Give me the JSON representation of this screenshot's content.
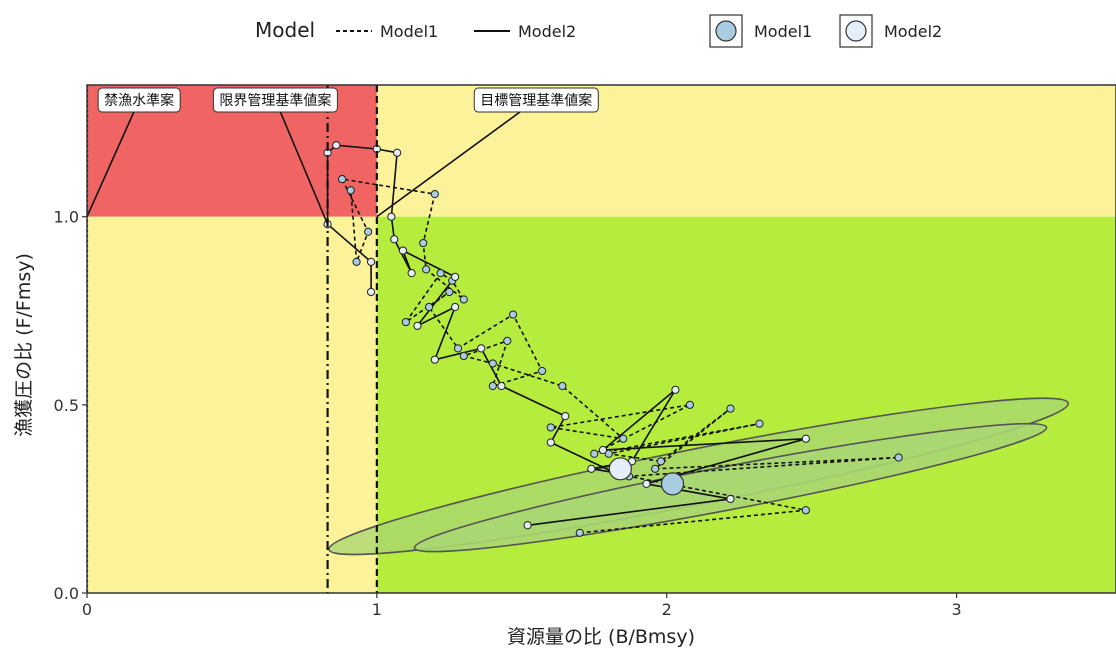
{
  "chart_data": {
    "type": "line",
    "xlabel": "資源量の比 (B/Bmsy)",
    "ylabel": "漁獲圧の比 (F/Fmsy)",
    "xlim": [
      0,
      3.55
    ],
    "ylim": [
      0,
      1.35
    ],
    "x_ticks": [
      0,
      1,
      2,
      3
    ],
    "y_ticks": [
      0.0,
      0.5,
      1.0
    ],
    "x_tick_labels": [
      "0",
      "1",
      "2",
      "3"
    ],
    "y_tick_labels": [
      "0.0",
      "0.5",
      "1.0"
    ],
    "grid": false,
    "legend_placement": "top",
    "colors": {
      "red_zone": "#f06464",
      "yellow_zone": "#fbf299",
      "green_zone": "#b5ec3d",
      "model1_point": "#a8cde0",
      "model2_point": "#e3eef8",
      "ellipse_fill": "#a8d672",
      "ellipse_stroke": "#555555"
    },
    "legend": {
      "line_title": "Model",
      "line_entries": [
        {
          "name": "Model1",
          "linestyle": "dashed"
        },
        {
          "name": "Model2",
          "linestyle": "solid"
        }
      ],
      "point_entries": [
        {
          "name": "Model1",
          "color": "#a8cde0"
        },
        {
          "name": "Model2",
          "color": "#e3eef8"
        }
      ]
    },
    "reference_lines": [
      {
        "label": "禁漁水準案",
        "x": 0,
        "linestyle": "dotted",
        "label_anchor": [
          0.18,
          1.31
        ],
        "leader_end": [
          0,
          1.0
        ]
      },
      {
        "label": "限界管理基準値案",
        "x": 0.83,
        "linestyle": "dashdot",
        "label_anchor": [
          0.65,
          1.31
        ],
        "leader_end": [
          0.83,
          0.98
        ]
      },
      {
        "label": "目標管理基準値案",
        "x": 1.0,
        "linestyle": "dashed",
        "label_anchor": [
          1.55,
          1.31
        ],
        "leader_end": [
          1.0,
          1.0
        ]
      }
    ],
    "series": [
      {
        "name": "Model1",
        "linestyle": "dashed",
        "points": [
          [
            1.7,
            0.16
          ],
          [
            2.48,
            0.22
          ],
          [
            1.87,
            0.31
          ],
          [
            2.8,
            0.36
          ],
          [
            1.96,
            0.33
          ],
          [
            2.22,
            0.49
          ],
          [
            1.98,
            0.35
          ],
          [
            1.8,
            0.37
          ],
          [
            2.32,
            0.45
          ],
          [
            1.75,
            0.37
          ],
          [
            2.08,
            0.5
          ],
          [
            1.6,
            0.44
          ],
          [
            1.85,
            0.41
          ],
          [
            1.64,
            0.55
          ],
          [
            1.4,
            0.61
          ],
          [
            1.3,
            0.63
          ],
          [
            1.45,
            0.67
          ],
          [
            1.4,
            0.55
          ],
          [
            1.57,
            0.59
          ],
          [
            1.47,
            0.74
          ],
          [
            1.28,
            0.65
          ],
          [
            1.18,
            0.76
          ],
          [
            1.25,
            0.8
          ],
          [
            1.1,
            0.72
          ],
          [
            1.22,
            0.85
          ],
          [
            1.26,
            0.83
          ],
          [
            1.3,
            0.78
          ],
          [
            1.17,
            0.86
          ],
          [
            1.16,
            0.93
          ],
          [
            1.2,
            1.06
          ],
          [
            0.88,
            1.1
          ],
          [
            0.97,
            0.96
          ],
          [
            0.93,
            0.88
          ],
          [
            0.91,
            1.07
          ]
        ]
      },
      {
        "name": "Model2",
        "linestyle": "solid",
        "points": [
          [
            1.52,
            0.18
          ],
          [
            2.22,
            0.25
          ],
          [
            1.93,
            0.29
          ],
          [
            2.48,
            0.41
          ],
          [
            1.78,
            0.38
          ],
          [
            2.03,
            0.54
          ],
          [
            1.88,
            0.35
          ],
          [
            1.74,
            0.33
          ],
          [
            1.82,
            0.32
          ],
          [
            1.6,
            0.4
          ],
          [
            1.65,
            0.47
          ],
          [
            1.43,
            0.55
          ],
          [
            1.36,
            0.65
          ],
          [
            1.2,
            0.62
          ],
          [
            1.27,
            0.76
          ],
          [
            1.14,
            0.71
          ],
          [
            1.27,
            0.84
          ],
          [
            1.09,
            0.91
          ],
          [
            1.12,
            0.85
          ],
          [
            1.06,
            0.94
          ],
          [
            1.05,
            1.0
          ],
          [
            1.07,
            1.17
          ],
          [
            1.0,
            1.18
          ],
          [
            0.86,
            1.19
          ],
          [
            0.83,
            1.17
          ],
          [
            0.83,
            0.98
          ],
          [
            0.98,
            0.88
          ],
          [
            0.98,
            0.8
          ]
        ]
      }
    ],
    "current_points": [
      {
        "name": "Model1",
        "x": 2.02,
        "y": 0.29
      },
      {
        "name": "Model2",
        "x": 1.84,
        "y": 0.33
      }
    ],
    "ellipses": [
      {
        "cx": 2.11,
        "cy": 0.31,
        "rx": 1.3,
        "ry": 0.023,
        "angle_deg": -11.2
      },
      {
        "cx": 2.22,
        "cy": 0.28,
        "rx": 1.11,
        "ry": 0.018,
        "angle_deg": -10.8
      }
    ]
  }
}
